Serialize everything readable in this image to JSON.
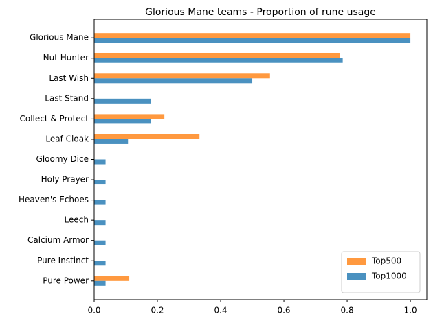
{
  "chart_data": {
    "type": "barh",
    "title": "Glorious Mane teams - Proportion of rune usage",
    "categories": [
      "Glorious Mane",
      "Nut Hunter",
      "Last Wish",
      "Last Stand",
      "Collect & Protect",
      "Leaf Cloak",
      "Gloomy Dice",
      "Holy Prayer",
      "Heaven's Echoes",
      "Leech",
      "Calcium Armor",
      "Pure Instinct",
      "Pure Power"
    ],
    "series": [
      {
        "name": "Top500",
        "color": "#ff993f",
        "values": [
          1.0,
          0.778,
          0.556,
          0,
          0.222,
          0.333,
          0,
          0,
          0,
          0,
          0,
          0,
          0.111
        ]
      },
      {
        "name": "Top1000",
        "color": "#4a91c0",
        "values": [
          1.0,
          0.786,
          0.5,
          0.179,
          0.179,
          0.107,
          0.036,
          0.036,
          0.036,
          0.036,
          0.036,
          0.036,
          0.036
        ]
      }
    ],
    "xlim": [
      0,
      1.052
    ],
    "xticks": [
      {
        "value": 0,
        "label": "0.0"
      },
      0.2,
      0.4,
      0.6,
      0.8,
      {
        "value": 1,
        "label": "1.0"
      }
    ],
    "legend": "lower right"
  }
}
